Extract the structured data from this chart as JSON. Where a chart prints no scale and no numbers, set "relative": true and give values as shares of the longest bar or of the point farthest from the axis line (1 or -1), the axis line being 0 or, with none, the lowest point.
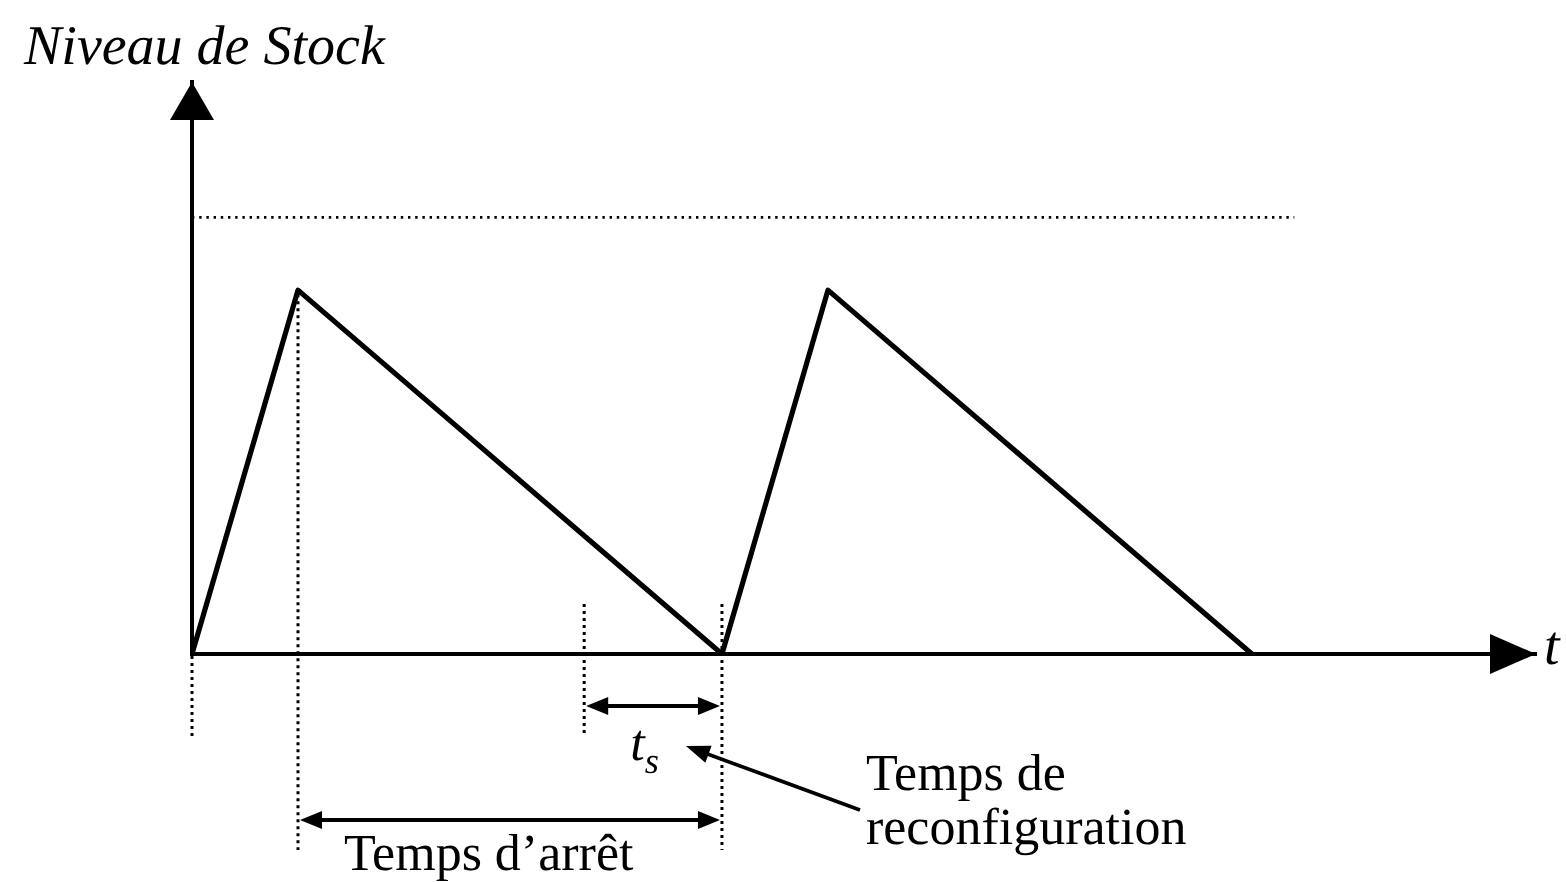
{
  "chart_data": {
    "type": "line",
    "relative": true,
    "xlabel": "t",
    "ylabel": "Niveau de Stock",
    "categories": [
      null,
      null,
      null,
      null,
      null,
      null,
      null,
      null,
      null,
      null,
      null
    ],
    "series": [
      {
        "color": "#000000",
        "values": [
          0,
          1,
          0.75,
          0.5,
          0.25,
          0,
          1,
          0.75,
          0.5,
          0.25,
          0
        ]
      }
    ],
    "ref_lines": [
      {
        "axis": "y",
        "value": 1.2,
        "color": "#000000",
        "line_style": "dotted"
      }
    ],
    "annotations": [
      "t$_{s}$",
      "Temps de reconfiguration",
      "Temps d’arrêt"
    ]
  }
}
